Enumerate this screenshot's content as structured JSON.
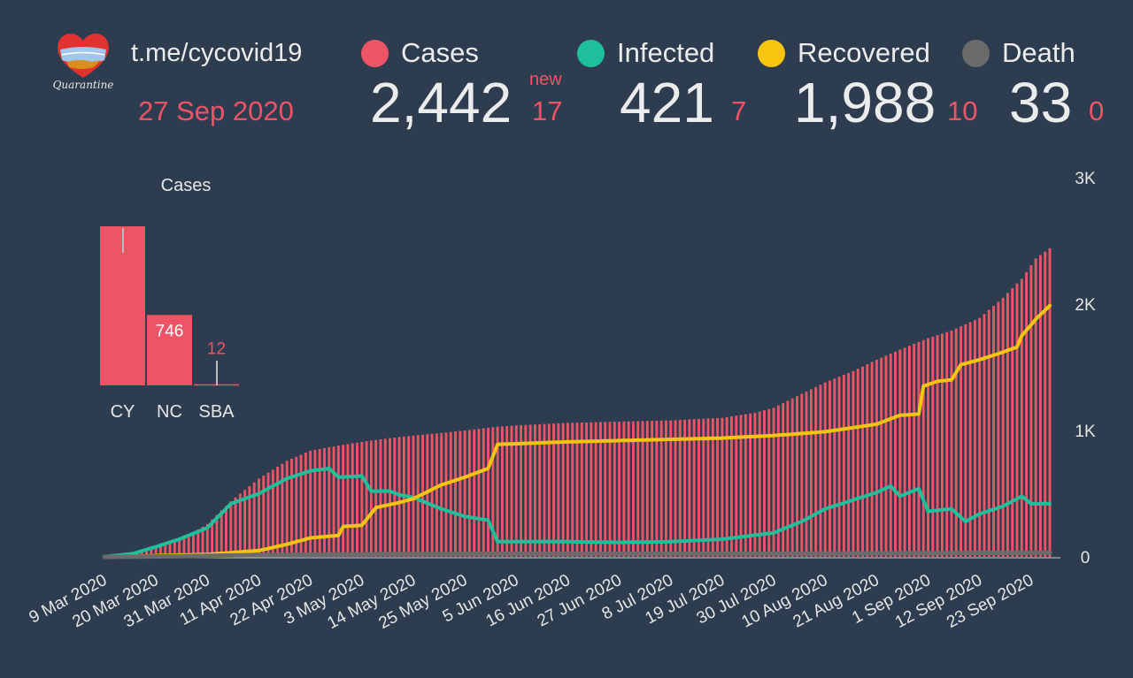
{
  "header": {
    "source": "t.me/cycovid19",
    "date": "27 Sep 2020",
    "logo_text": "Quarantine"
  },
  "stats": {
    "new_label": "new",
    "cases": {
      "label": "Cases",
      "value": "2,442",
      "delta": "17",
      "color": "#ef5466"
    },
    "infected": {
      "label": "Infected",
      "value": "421",
      "delta": "7",
      "color": "#1fbf9c"
    },
    "recovered": {
      "label": "Recovered",
      "value": "1,988",
      "delta": "10",
      "color": "#f6c510"
    },
    "death": {
      "label": "Death",
      "value": "33",
      "delta": "0",
      "color": "#6b6b6b"
    }
  },
  "chart_data": [
    {
      "type": "bar",
      "title": "Cases",
      "categories": [
        "CY",
        "NC",
        "SBA"
      ],
      "values": [
        1684,
        746,
        12
      ],
      "data_labels": [
        "",
        "746",
        "12"
      ],
      "color": "#ef5466"
    },
    {
      "type": "bar+line",
      "x_ticks": [
        "9 Mar 2020",
        "20 Mar 2020",
        "31 Mar 2020",
        "11 Apr 2020",
        "22 Apr 2020",
        "3 May 2020",
        "14 May 2020",
        "25 May 2020",
        "5 Jun 2020",
        "16 Jun 2020",
        "27 Jun 2020",
        "8 Jul 2020",
        "19 Jul 2020",
        "30 Jul 2020",
        "10 Aug 2020",
        "21 Aug 2020",
        "1 Sep 2020",
        "12 Sep 2020",
        "23 Sep 2020"
      ],
      "y_ticks": [
        "0",
        "1K",
        "2K",
        "3K"
      ],
      "ylim": [
        0,
        3000
      ],
      "y_axis_position": "right",
      "x_start": "2020-03-09",
      "x_end": "2020-09-27",
      "series": [
        {
          "name": "Cases",
          "kind": "bar",
          "color": "#ef5466",
          "points": [
            [
              "2020-03-09",
              2
            ],
            [
              "2020-03-15",
              20
            ],
            [
              "2020-03-20",
              70
            ],
            [
              "2020-03-25",
              130
            ],
            [
              "2020-03-31",
              260
            ],
            [
              "2020-04-05",
              440
            ],
            [
              "2020-04-11",
              620
            ],
            [
              "2020-04-17",
              760
            ],
            [
              "2020-04-22",
              840
            ],
            [
              "2020-04-28",
              880
            ],
            [
              "2020-05-03",
              910
            ],
            [
              "2020-05-09",
              940
            ],
            [
              "2020-05-14",
              960
            ],
            [
              "2020-05-20",
              980
            ],
            [
              "2020-05-25",
              1000
            ],
            [
              "2020-06-01",
              1030
            ],
            [
              "2020-06-05",
              1040
            ],
            [
              "2020-06-16",
              1060
            ],
            [
              "2020-06-27",
              1070
            ],
            [
              "2020-07-08",
              1080
            ],
            [
              "2020-07-19",
              1100
            ],
            [
              "2020-07-26",
              1140
            ],
            [
              "2020-07-30",
              1180
            ],
            [
              "2020-08-05",
              1290
            ],
            [
              "2020-08-10",
              1380
            ],
            [
              "2020-08-16",
              1470
            ],
            [
              "2020-08-21",
              1560
            ],
            [
              "2020-08-26",
              1640
            ],
            [
              "2020-09-01",
              1730
            ],
            [
              "2020-09-06",
              1790
            ],
            [
              "2020-09-12",
              1890
            ],
            [
              "2020-09-17",
              2050
            ],
            [
              "2020-09-21",
              2200
            ],
            [
              "2020-09-24",
              2360
            ],
            [
              "2020-09-27",
              2442
            ]
          ]
        },
        {
          "name": "Infected",
          "kind": "line",
          "color": "#1fbf9c",
          "points": [
            [
              "2020-03-09",
              2
            ],
            [
              "2020-03-15",
              25
            ],
            [
              "2020-03-20",
              80
            ],
            [
              "2020-03-25",
              140
            ],
            [
              "2020-03-31",
              230
            ],
            [
              "2020-04-05",
              420
            ],
            [
              "2020-04-11",
              500
            ],
            [
              "2020-04-17",
              620
            ],
            [
              "2020-04-22",
              680
            ],
            [
              "2020-04-26",
              700
            ],
            [
              "2020-04-28",
              630
            ],
            [
              "2020-05-03",
              640
            ],
            [
              "2020-05-05",
              520
            ],
            [
              "2020-05-09",
              520
            ],
            [
              "2020-05-11",
              490
            ],
            [
              "2020-05-14",
              470
            ],
            [
              "2020-05-20",
              380
            ],
            [
              "2020-05-25",
              320
            ],
            [
              "2020-05-30",
              290
            ],
            [
              "2020-06-01",
              120
            ],
            [
              "2020-06-16",
              120
            ],
            [
              "2020-06-27",
              115
            ],
            [
              "2020-07-08",
              120
            ],
            [
              "2020-07-19",
              140
            ],
            [
              "2020-07-30",
              190
            ],
            [
              "2020-08-05",
              280
            ],
            [
              "2020-08-10",
              380
            ],
            [
              "2020-08-16",
              450
            ],
            [
              "2020-08-21",
              510
            ],
            [
              "2020-08-24",
              560
            ],
            [
              "2020-08-26",
              480
            ],
            [
              "2020-08-30",
              540
            ],
            [
              "2020-09-01",
              360
            ],
            [
              "2020-09-06",
              380
            ],
            [
              "2020-09-09",
              280
            ],
            [
              "2020-09-12",
              340
            ],
            [
              "2020-09-17",
              400
            ],
            [
              "2020-09-21",
              480
            ],
            [
              "2020-09-23",
              420
            ],
            [
              "2020-09-27",
              421
            ]
          ]
        },
        {
          "name": "Recovered",
          "kind": "line",
          "color": "#f6c510",
          "points": [
            [
              "2020-03-09",
              0
            ],
            [
              "2020-03-31",
              20
            ],
            [
              "2020-04-11",
              50
            ],
            [
              "2020-04-17",
              100
            ],
            [
              "2020-04-22",
              150
            ],
            [
              "2020-04-28",
              170
            ],
            [
              "2020-04-29",
              240
            ],
            [
              "2020-05-03",
              250
            ],
            [
              "2020-05-06",
              390
            ],
            [
              "2020-05-11",
              430
            ],
            [
              "2020-05-14",
              460
            ],
            [
              "2020-05-20",
              570
            ],
            [
              "2020-05-25",
              630
            ],
            [
              "2020-05-30",
              700
            ],
            [
              "2020-06-01",
              890
            ],
            [
              "2020-06-16",
              910
            ],
            [
              "2020-06-27",
              920
            ],
            [
              "2020-07-08",
              930
            ],
            [
              "2020-07-19",
              940
            ],
            [
              "2020-07-30",
              960
            ],
            [
              "2020-08-10",
              990
            ],
            [
              "2020-08-21",
              1050
            ],
            [
              "2020-08-26",
              1120
            ],
            [
              "2020-08-30",
              1130
            ],
            [
              "2020-08-31",
              1350
            ],
            [
              "2020-09-03",
              1390
            ],
            [
              "2020-09-06",
              1400
            ],
            [
              "2020-09-08",
              1520
            ],
            [
              "2020-09-12",
              1560
            ],
            [
              "2020-09-17",
              1620
            ],
            [
              "2020-09-20",
              1660
            ],
            [
              "2020-09-21",
              1750
            ],
            [
              "2020-09-24",
              1880
            ],
            [
              "2020-09-27",
              1988
            ]
          ]
        },
        {
          "name": "Death",
          "kind": "line",
          "color": "#6b6b6b",
          "points": [
            [
              "2020-03-09",
              0
            ],
            [
              "2020-03-25",
              5
            ],
            [
              "2020-04-11",
              15
            ],
            [
              "2020-05-03",
              20
            ],
            [
              "2020-06-01",
              25
            ],
            [
              "2020-08-10",
              27
            ],
            [
              "2020-09-27",
              33
            ]
          ]
        }
      ]
    }
  ]
}
